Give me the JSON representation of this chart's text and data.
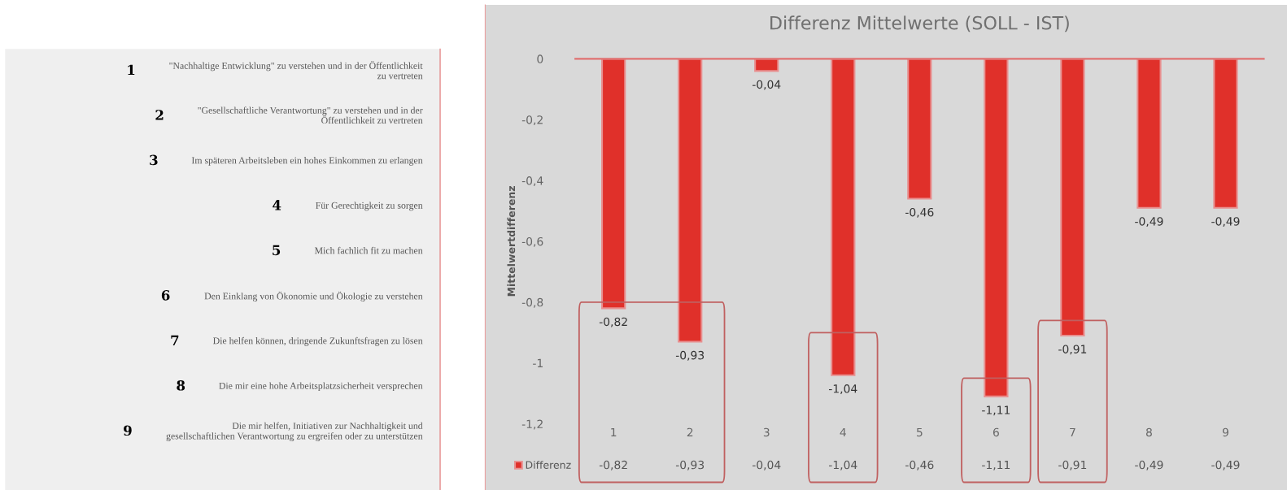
{
  "chart_data": [
    {
      "type": "other",
      "categories": [
        "1",
        "2",
        "3",
        "4",
        "5",
        "6",
        "7",
        "8",
        "9"
      ],
      "annotations": [
        "\"Nachhaltige Entwicklung\" zu verstehen und in der Öffentlichkeit\nzu vertreten",
        "\"Gesellschaftliche Verantwortung\" zu verstehen und in der\nÖffentlichkeit zu vertreten",
        "Im späteren Arbeitsleben ein hohes Einkommen zu erlangen",
        "Für Gerechtigkeit zu sorgen",
        "Mich fachlich fit zu machen",
        "Den Einklang von Ökonomie und Ökologie zu verstehen",
        "Die helfen können, dringende Zukunftsfragen zu lösen",
        "Die mir eine hohe Arbeitsplatzsicherheit versprechen",
        "Die mir helfen, Initiativen zur Nachhaltigkeit und\ngesellschaftlichen Verantwortung zu ergreifen oder zu unterstützen"
      ]
    },
    {
      "type": "bar",
      "title": "Differenz Mittelwerte (SOLL - IST)",
      "ylabel": "Mittelwertdifferenz",
      "categories": [
        "1",
        "2",
        "3",
        "4",
        "5",
        "6",
        "7",
        "8",
        "9"
      ],
      "series": [
        {
          "name": "Differenz",
          "color": "#e0302a",
          "values": [
            -0.82,
            -0.93,
            -0.04,
            -1.04,
            -0.46,
            -1.11,
            -0.91,
            -0.49,
            -0.49
          ],
          "value_labels": [
            "-0,82",
            "-0,93",
            "-0,04",
            "-1,04",
            "-0,46",
            "-1,11",
            "-0,91",
            "-0,49",
            "-0,49"
          ]
        }
      ],
      "ylim": [
        -1.2,
        0
      ],
      "yticks": [
        {
          "value": 0,
          "label": "0"
        },
        {
          "value": -0.2,
          "label": "-0,2"
        },
        {
          "value": -0.4,
          "label": "-0,4"
        },
        {
          "value": -0.6,
          "label": "-0,6"
        },
        {
          "value": -0.8,
          "label": "-0,8"
        },
        {
          "value": -1,
          "label": "-1"
        },
        {
          "value": -1.2,
          "label": "-1,2"
        }
      ],
      "data_labels": true,
      "grid": false,
      "legend": "bottom left"
    }
  ]
}
